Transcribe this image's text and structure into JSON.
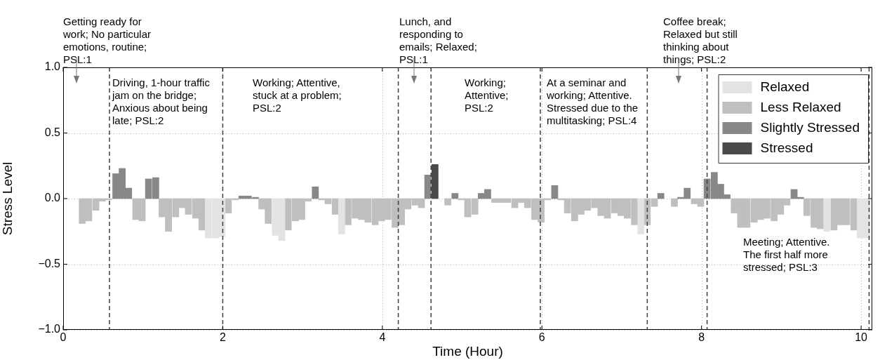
{
  "chart_data": {
    "type": "bar",
    "xlabel": "Time (Hour)",
    "ylabel": "Stress Level",
    "xlim": [
      0,
      10.14
    ],
    "xticks": [
      0,
      2,
      4,
      6,
      8,
      10
    ],
    "ylim": [
      -1,
      1
    ],
    "yticks": [
      {
        "value": -1,
        "label": "−1.0"
      },
      {
        "value": -0.5,
        "label": "−0.5"
      },
      {
        "value": 0,
        "label": "0.0"
      },
      {
        "value": 0.5,
        "label": "0.5"
      },
      {
        "value": 1,
        "label": "1.0"
      }
    ],
    "grid": true,
    "legend": "top right",
    "series": [
      {
        "name": "Relaxed",
        "color": "#e3e3e3",
        "x": [
          1.82,
          1.91,
          1.99,
          2.66,
          2.74,
          3.49,
          7.24,
          9.57,
          9.99,
          10.07
        ],
        "values": [
          -0.3,
          -0.3,
          -0.29,
          -0.28,
          -0.32,
          -0.27,
          -0.27,
          -0.25,
          -0.3,
          -0.3
        ]
      },
      {
        "name": "Less Relaxed",
        "color": "#bfbfbf",
        "x": [
          0.24,
          0.32,
          0.41,
          0.49,
          0.57,
          0.91,
          0.99,
          1.24,
          1.32,
          1.41,
          1.49,
          1.57,
          1.66,
          1.74,
          2.07,
          2.16,
          2.49,
          2.57,
          2.82,
          2.91,
          2.99,
          3.07,
          3.24,
          3.32,
          3.41,
          3.57,
          3.66,
          3.74,
          3.82,
          3.91,
          3.99,
          4.07,
          4.16,
          4.24,
          4.32,
          4.41,
          4.49,
          4.82,
          4.99,
          5.07,
          5.16,
          5.41,
          5.49,
          5.57,
          5.66,
          5.74,
          5.82,
          5.91,
          5.99,
          6.07,
          6.24,
          6.32,
          6.41,
          6.49,
          6.57,
          6.66,
          6.74,
          6.82,
          6.91,
          6.99,
          7.07,
          7.16,
          7.32,
          7.41,
          7.66,
          7.91,
          7.99,
          8.41,
          8.49,
          8.57,
          8.66,
          8.74,
          8.82,
          8.91,
          8.99,
          9.07,
          9.32,
          9.41,
          9.49,
          9.66,
          9.74,
          9.82,
          9.91
        ],
        "values": [
          -0.19,
          -0.17,
          -0.09,
          -0.02,
          -0.01,
          -0.16,
          -0.17,
          -0.14,
          -0.25,
          -0.14,
          -0.07,
          -0.12,
          -0.15,
          -0.24,
          -0.11,
          -0.01,
          -0.08,
          -0.19,
          -0.24,
          -0.17,
          -0.16,
          -0.02,
          -0.01,
          -0.04,
          -0.12,
          -0.2,
          -0.15,
          -0.16,
          -0.18,
          -0.2,
          -0.17,
          -0.16,
          -0.22,
          -0.2,
          -0.08,
          -0.05,
          -0.07,
          -0.05,
          -0.01,
          -0.14,
          -0.12,
          -0.03,
          -0.03,
          -0.03,
          -0.07,
          -0.03,
          -0.07,
          -0.16,
          -0.18,
          -0.01,
          -0.01,
          -0.11,
          -0.17,
          -0.12,
          -0.09,
          -0.07,
          -0.13,
          -0.15,
          -0.11,
          -0.13,
          -0.15,
          -0.2,
          -0.2,
          -0.06,
          -0.06,
          -0.04,
          -0.06,
          -0.11,
          -0.22,
          -0.22,
          -0.18,
          -0.16,
          -0.15,
          -0.17,
          -0.12,
          -0.05,
          -0.13,
          -0.22,
          -0.23,
          -0.24,
          -0.2,
          -0.2,
          -0.24
        ]
      },
      {
        "name": "Slightly Stressed",
        "color": "#888888",
        "x": [
          0.66,
          0.74,
          0.82,
          1.07,
          1.16,
          2.24,
          2.32,
          2.41,
          3.16,
          4.57,
          4.91,
          5.24,
          5.32,
          6.16,
          7.49,
          7.74,
          7.82,
          8.07,
          8.16,
          8.24,
          8.32,
          9.16,
          9.24
        ],
        "values": [
          0.19,
          0.23,
          0.08,
          0.15,
          0.16,
          0.02,
          0.02,
          0.01,
          0.09,
          0.18,
          0.04,
          0.04,
          0.07,
          0.1,
          0.04,
          0.01,
          0.08,
          0.15,
          0.2,
          0.11,
          0.03,
          0.07,
          0.01
        ]
      },
      {
        "name": "Stressed",
        "color": "#4a4a4a",
        "x": [
          4.66
        ],
        "values": [
          0.26
        ]
      }
    ],
    "ref_lines": [
      {
        "axis": "x",
        "value": 0.58,
        "color": "#404040",
        "line_style": "dashed"
      },
      {
        "axis": "x",
        "value": 2.0,
        "color": "#404040",
        "line_style": "dashed"
      },
      {
        "axis": "x",
        "value": 4.2,
        "color": "#404040",
        "line_style": "dashed"
      },
      {
        "axis": "x",
        "value": 4.61,
        "color": "#404040",
        "line_style": "dashed"
      },
      {
        "axis": "x",
        "value": 5.98,
        "color": "#404040",
        "line_style": "dashed"
      },
      {
        "axis": "x",
        "value": 7.32,
        "color": "#404040",
        "line_style": "dashed"
      },
      {
        "axis": "x",
        "value": 8.07,
        "color": "#404040",
        "line_style": "dashed"
      },
      {
        "axis": "x",
        "value": 10.1,
        "color": "#404040",
        "line_style": "dashed"
      }
    ],
    "annotations": [
      "Getting ready for work; No particular emotions, routine; PSL:1",
      "Lunch, and responding to emails; Relaxed; PSL:1",
      "Coffee break; Relaxed but still thinking about things; PSL:2",
      "Driving, 1-hour traffic jam on the bridge; Anxious about being late; PSL:2",
      "Working; Attentive, stuck at a problem; PSL:2",
      "Working; Attentive; PSL:2",
      "At a seminar and working; Attentive. Stressed due to the multitasking; PSL:4",
      "Meeting; Attentive. The first half more stressed; PSL:3"
    ]
  }
}
